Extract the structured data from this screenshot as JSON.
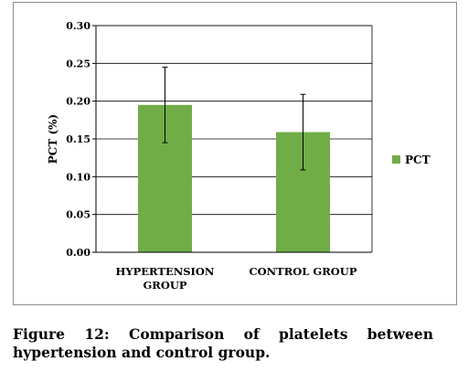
{
  "chart_data": {
    "type": "bar",
    "categories": [
      "HYPERTENSION GROUP",
      "CONTROL GROUP"
    ],
    "series": [
      {
        "name": "PCT",
        "values": [
          0.195,
          0.159
        ],
        "error": [
          0.05,
          0.05
        ]
      }
    ],
    "ylabel": "PCT (%)",
    "ylim": [
      0,
      0.3
    ],
    "yticks": [
      0.0,
      0.05,
      0.1,
      0.15,
      0.2,
      0.25,
      0.3
    ],
    "ytick_labels": [
      "0.00",
      "0.05",
      "0.10",
      "0.15",
      "0.20",
      "0.25",
      "0.30"
    ],
    "grid": true,
    "legend": "right",
    "bar_color": "#70ad47"
  },
  "caption": "Figure 12: Comparison of platelets between hypertension and control group."
}
